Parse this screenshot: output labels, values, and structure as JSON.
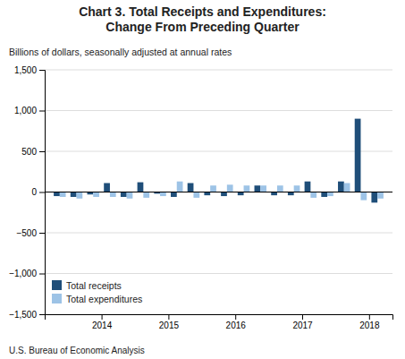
{
  "chart_data": {
    "type": "bar",
    "title": [
      "Chart 3. Total Receipts and Expenditures:",
      "Change From Preceding Quarter"
    ],
    "subtitle": "Billions of dollars, seasonally adjusted at annual rates",
    "annotations": [
      "U.S. Bureau of Economic Analysis"
    ],
    "x": [
      2013.375,
      2013.625,
      2013.875,
      2014.125,
      2014.375,
      2014.625,
      2014.875,
      2015.125,
      2015.375,
      2015.625,
      2015.875,
      2016.125,
      2016.375,
      2016.625,
      2016.875,
      2017.125,
      2017.375,
      2017.625,
      2017.875,
      2018.125
    ],
    "series": [
      {
        "name": "Total receipts",
        "color": "#1F4E79",
        "values": [
          -50,
          -60,
          -30,
          110,
          -60,
          120,
          -20,
          -60,
          110,
          -40,
          -50,
          -40,
          80,
          -40,
          -40,
          130,
          -60,
          130,
          900,
          -130
        ]
      },
      {
        "name": "Total expenditures",
        "color": "#9DC3E6",
        "values": [
          -60,
          -80,
          -60,
          -60,
          -80,
          -70,
          -50,
          130,
          -70,
          80,
          90,
          80,
          80,
          80,
          80,
          -70,
          -50,
          110,
          -100,
          -80
        ]
      }
    ],
    "xlim": [
      2013.15,
      2018.35
    ],
    "xticks": [
      2014,
      2015,
      2016,
      2017,
      2018
    ],
    "ylim": [
      -1500,
      1500
    ],
    "yticks": [
      {
        "value": -1500,
        "label": "−1,500"
      },
      {
        "value": -1000,
        "label": "−1,000"
      },
      {
        "value": -500,
        "label": "−500"
      },
      0,
      500,
      {
        "value": 1000,
        "label": "1,000"
      },
      {
        "value": 1500,
        "label": "1,500"
      }
    ],
    "grid": true,
    "legend": "lower left"
  }
}
